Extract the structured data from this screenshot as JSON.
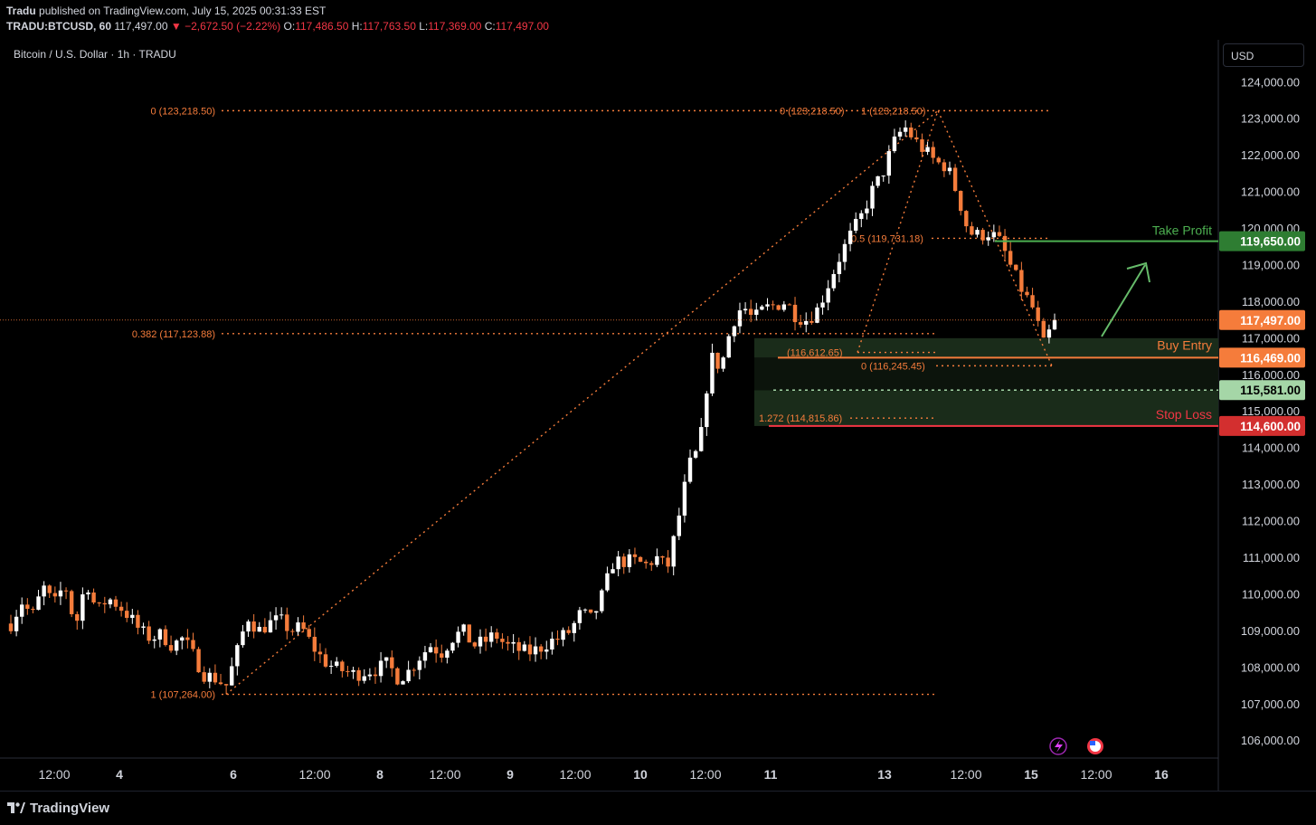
{
  "header": {
    "publisher": "Tradu",
    "published_text": "published on TradingView.com, July 15, 2025 00:31:33 EST",
    "symbol": "TRADU:BTCUSD, 60",
    "last": "117,497.00",
    "change": "−2,672.50 (−2.22%)",
    "o_label": "O:",
    "o_value": "117,486.50",
    "h_label": "H:",
    "h_value": "117,763.50",
    "l_label": "L:",
    "l_value": "117,369.00",
    "c_label": "C:",
    "c_value": "117,497.00"
  },
  "pane_title": "Bitcoin / U.S. Dollar · 1h · TRADU",
  "currency": "USD",
  "footer": {
    "brand": "TradingView"
  },
  "colors": {
    "bull": "#ffffff",
    "bear": "#f57c3b",
    "fib": "#f57c3b",
    "take_profit": "#4caf50",
    "stop_loss": "#f23645",
    "entry": "#f57c3b",
    "zone": "#1b2e1b"
  },
  "chart_data": {
    "type": "candlestick",
    "ylim": [
      105500,
      124500
    ],
    "y_ticks": [
      124000,
      123000,
      122000,
      121000,
      120000,
      119000,
      118000,
      117000,
      116000,
      115000,
      114000,
      113000,
      112000,
      111000,
      110000,
      109000,
      108000,
      107000,
      106000
    ],
    "y_tick_labels": [
      "124,000.00",
      "123,000.00",
      "122,000.00",
      "121,000.00",
      "120,000.00",
      "119,000.00",
      "118,000.00",
      "117,000.00",
      "116,000.00",
      "115,000.00",
      "114,000.00",
      "113,000.00",
      "112,000.00",
      "111,000.00",
      "110,000.00",
      "109,000.00",
      "108,000.00",
      "107,000.00",
      "106,000.00"
    ],
    "x_tick_labels": [
      "12:00",
      "4",
      "6",
      "12:00",
      "8",
      "12:00",
      "9",
      "12:00",
      "10",
      "12:00",
      "11",
      "13",
      "12:00",
      "15",
      "12:00",
      "16"
    ],
    "x_tick_bold": [
      false,
      true,
      true,
      false,
      true,
      false,
      true,
      false,
      true,
      false,
      true,
      true,
      false,
      true,
      false,
      true
    ],
    "fib_labels": [
      "0 (123,218.50)",
      "0.382 (117,123.88)",
      "1 (107,264.00)",
      "0 (123,218.50)",
      "1 (123,218.50)",
      "0.5 (119,731.18)",
      "(116,612.65)",
      "0 (116,245.45)",
      "1.272 (114,815.86)"
    ],
    "trade_levels": [
      {
        "label": "Take Profit",
        "price": 119650,
        "price_label": "119,650.00"
      },
      {
        "label": "Buy Entry",
        "price": 116469,
        "price_label": "116,469.00"
      },
      {
        "label": "",
        "price": 115581,
        "price_label": "115,581.00"
      },
      {
        "label": "Stop Loss",
        "price": 114600,
        "price_label": "114,600.00"
      }
    ],
    "last_price": {
      "price": 117497,
      "label": "117,497.00"
    },
    "path": [
      109200,
      109800,
      109400,
      110200,
      109700,
      110300,
      109100,
      110400,
      109500,
      109900,
      109700,
      109400,
      109000,
      108800,
      108900,
      108600,
      108800,
      108300,
      107800,
      107700,
      107500,
      108400,
      109400,
      109000,
      109200,
      109300,
      109000,
      109100,
      108600,
      108200,
      108000,
      107900,
      107800,
      107900,
      107950,
      108100,
      107700,
      107900,
      108300,
      108600,
      108400,
      108800,
      109000,
      108600,
      108700,
      108900,
      108600,
      108500,
      108400,
      108500,
      108700,
      108800,
      109000,
      109500,
      109300,
      110000,
      110900,
      110900,
      110900,
      110800,
      111000,
      110700,
      112000,
      113500,
      114000,
      116500,
      116200,
      117400,
      117900,
      117500,
      117800,
      117900,
      118000,
      117600,
      117500,
      117800,
      118500,
      119200,
      119800,
      120300,
      121000,
      121500,
      122300,
      122800,
      122400,
      122100,
      121800,
      121700,
      120900,
      119900,
      119800,
      119900,
      119600,
      118900,
      118300,
      117800,
      116800,
      117497
    ],
    "waves": [
      [
        0,
        0.0,
        0.8
      ],
      [
        18,
        0.3,
        0.6
      ],
      [
        25,
        0.4,
        0.5
      ],
      [
        31,
        0.0,
        0.6
      ],
      [
        48,
        0.1,
        0.5
      ],
      [
        60,
        0.2,
        0.4
      ],
      [
        72,
        0.3,
        0.7
      ],
      [
        84,
        0.0,
        0.6
      ],
      [
        96,
        0.0,
        0.0
      ]
    ]
  }
}
